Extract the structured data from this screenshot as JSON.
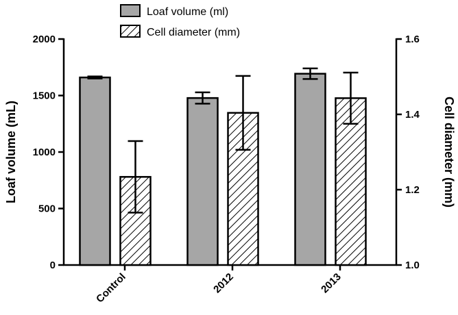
{
  "chart_data": {
    "type": "bar",
    "categories": [
      "Control",
      "2012",
      "2013"
    ],
    "series": [
      {
        "name": "Loaf volume (ml)",
        "axis": "left",
        "values": [
          1660,
          1478,
          1693
        ],
        "errors": [
          9,
          50,
          47
        ],
        "fill": "#a6a6a6",
        "pattern": "solid"
      },
      {
        "name": "Cell diameter (mm)",
        "axis": "right",
        "values": [
          1.234,
          1.404,
          1.443
        ],
        "errors": [
          0.095,
          0.098,
          0.068
        ],
        "fill": "#ffffff",
        "pattern": "diagonal-hatch"
      }
    ],
    "ylabel": "Loaf volume (mL)",
    "ylabel_right": "Cell diameter (mm)",
    "ylim": [
      0,
      2000
    ],
    "ylim_right": [
      1.0,
      1.6
    ],
    "yticks": [
      "0",
      "500",
      "1000",
      "1500",
      "2000"
    ],
    "yticks_right": [
      "1.0",
      "1.2",
      "1.4",
      "1.6"
    ],
    "legend_position": "top-center",
    "grid": false,
    "colors": {
      "solid_bar": "#a6a6a6",
      "hatch_bar": "#ffffff",
      "stroke": "#000000"
    }
  }
}
